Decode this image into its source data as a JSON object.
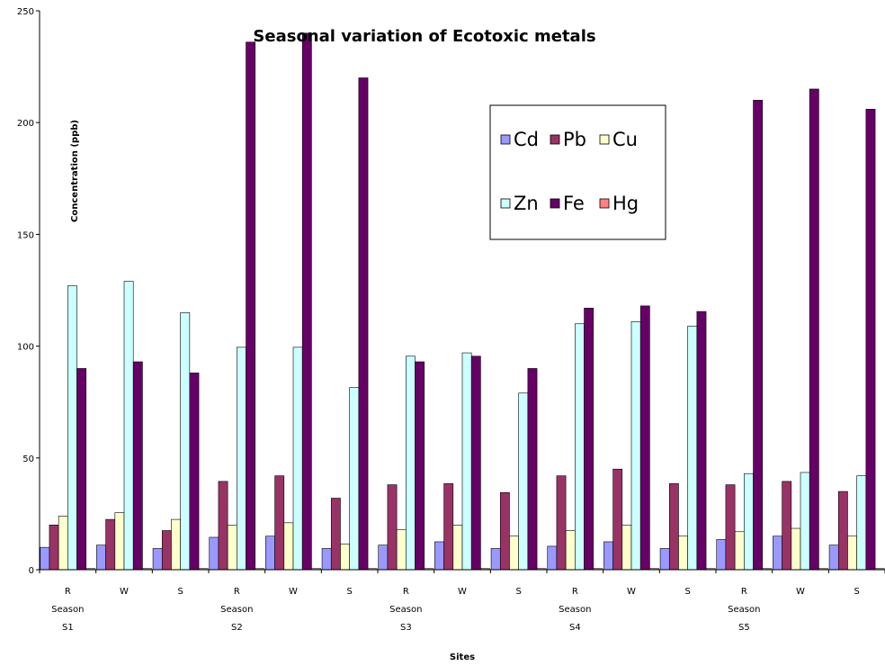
{
  "chart_data": {
    "type": "bar",
    "title": "Seasonal variation of Ecotoxic metals",
    "xlabel": "Sites",
    "ylabel": "Concentration (ppb)",
    "ylim": [
      0,
      250
    ],
    "yticks": [
      "0",
      "50",
      "100",
      "150",
      "200",
      "250"
    ],
    "ytick_values": [
      0,
      50,
      100,
      150,
      200,
      250
    ],
    "grid": false,
    "legend_position": "upper-right",
    "categories": [
      "R",
      "W",
      "S",
      "R",
      "W",
      "S",
      "R",
      "W",
      "S",
      "R",
      "W",
      "S",
      "R",
      "W",
      "S"
    ],
    "group_labels": [
      {
        "index": 0,
        "line1": "Season",
        "line2": "S1"
      },
      {
        "index": 3,
        "line1": "Season",
        "line2": "S2"
      },
      {
        "index": 6,
        "line1": "Season",
        "line2": "S3"
      },
      {
        "index": 9,
        "line1": "Season",
        "line2": "S4"
      },
      {
        "index": 12,
        "line1": "Season",
        "line2": "S5"
      }
    ],
    "series": [
      {
        "name": "Cd",
        "color": "#9999ff",
        "values": [
          10,
          11,
          9.5,
          14.5,
          15,
          9.5,
          11,
          12.5,
          9.5,
          10.5,
          12.5,
          9.5,
          13.5,
          15,
          11
        ]
      },
      {
        "name": "Pb",
        "color": "#993366",
        "values": [
          20,
          22.5,
          17.5,
          39.5,
          42,
          32,
          38,
          38.5,
          34.5,
          42,
          45,
          38.5,
          38,
          39.5,
          35
        ]
      },
      {
        "name": "Cu",
        "color": "#ffffcc",
        "values": [
          24,
          25.5,
          22.5,
          20,
          21,
          11.5,
          18,
          20,
          15,
          17.5,
          20,
          15,
          17,
          18.5,
          15
        ]
      },
      {
        "name": "Zn",
        "color": "#ccffff",
        "values": [
          127,
          129,
          115,
          99.5,
          99.5,
          81.5,
          95.5,
          97,
          79,
          110,
          111,
          109,
          43,
          43.5,
          42
        ]
      },
      {
        "name": "Fe",
        "color": "#660066",
        "values": [
          90,
          93,
          88,
          236,
          240,
          220,
          93,
          95.5,
          90,
          117,
          118,
          115.5,
          210,
          215,
          206
        ]
      },
      {
        "name": "Hg",
        "color": "#ff8080",
        "values": [
          0.5,
          0.5,
          0.5,
          0.5,
          0.5,
          0.5,
          0.5,
          0.5,
          0.5,
          0.5,
          0.5,
          0.5,
          0.5,
          0.5,
          0.5
        ]
      }
    ]
  }
}
